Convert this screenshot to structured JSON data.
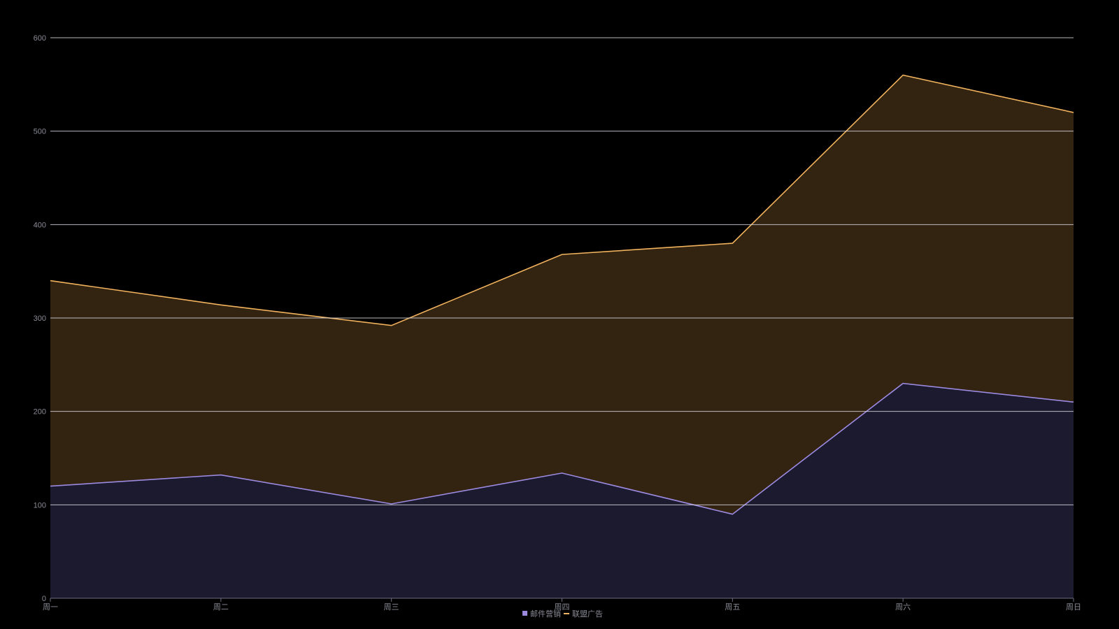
{
  "chart_data": {
    "type": "area",
    "stacked": true,
    "categories": [
      "周一",
      "周二",
      "周三",
      "周四",
      "周五",
      "周六",
      "周日"
    ],
    "series": [
      {
        "name": "邮件营销",
        "values": [
          120,
          132,
          101,
          134,
          90,
          230,
          210
        ],
        "color": "#9b8ae0",
        "fill": "#1c1a2e"
      },
      {
        "name": "联盟广告",
        "values": [
          220,
          182,
          191,
          234,
          290,
          330,
          310
        ],
        "color": "#f0b25c",
        "fill": "#332311"
      }
    ],
    "ylim": [
      0,
      600
    ],
    "yticks": [
      0,
      100,
      200,
      300,
      400,
      500,
      600
    ],
    "grid": true,
    "legend": "bottom-center",
    "colors": {
      "background": "#000000",
      "grid": "#d7d7e0",
      "axis": "#6e6e80",
      "text": "#8a8a96"
    }
  }
}
